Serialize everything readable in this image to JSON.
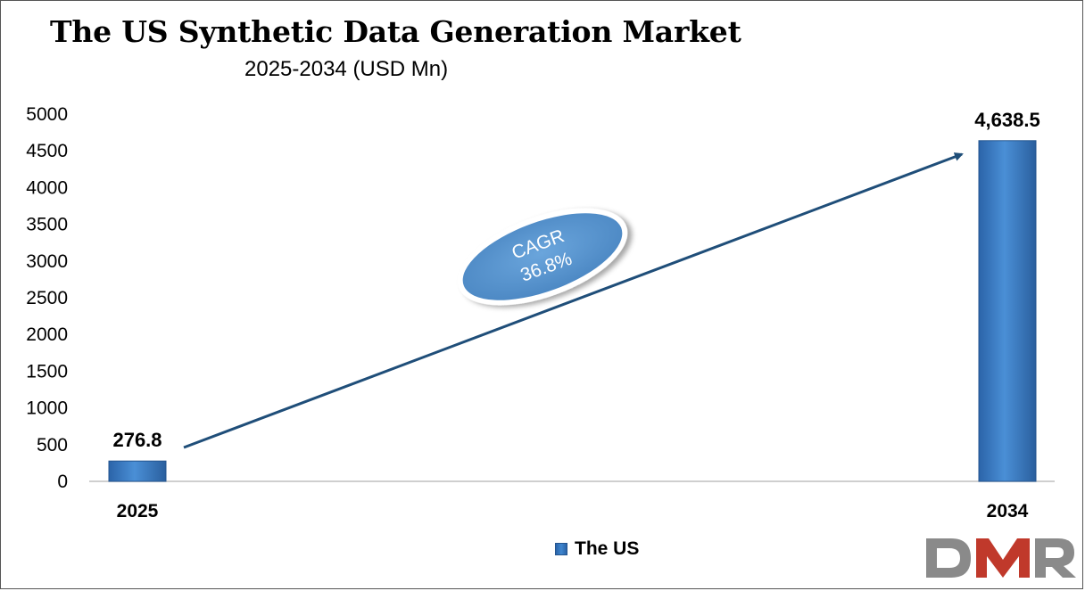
{
  "chart_data": {
    "type": "bar",
    "title": "The US Synthetic Data Generation Market",
    "subtitle": "2025-2034 (USD Mn)",
    "categories": [
      "2025",
      "2034"
    ],
    "series": [
      {
        "name": "The US",
        "values": [
          276.8,
          4638.5
        ],
        "labels": [
          "276.8",
          "4,638.5"
        ]
      }
    ],
    "ylim": [
      0,
      5000
    ],
    "yticks": [
      0,
      500,
      1000,
      1500,
      2000,
      2500,
      3000,
      3500,
      4000,
      4500,
      5000
    ],
    "grid": false,
    "legend_position": "bottom",
    "annotation": {
      "line1": "CAGR",
      "line2": "36.8%"
    },
    "colors": {
      "bar": "#3a7fc8",
      "bar_edge": "#24558f",
      "arrow": "#1f4e79",
      "ellipse": "#5b9bd5"
    }
  },
  "logo": {
    "text": "DMR",
    "colors": {
      "d": "#8a8a8a",
      "m": "#c0392b",
      "r": "#8a8a8a"
    }
  }
}
